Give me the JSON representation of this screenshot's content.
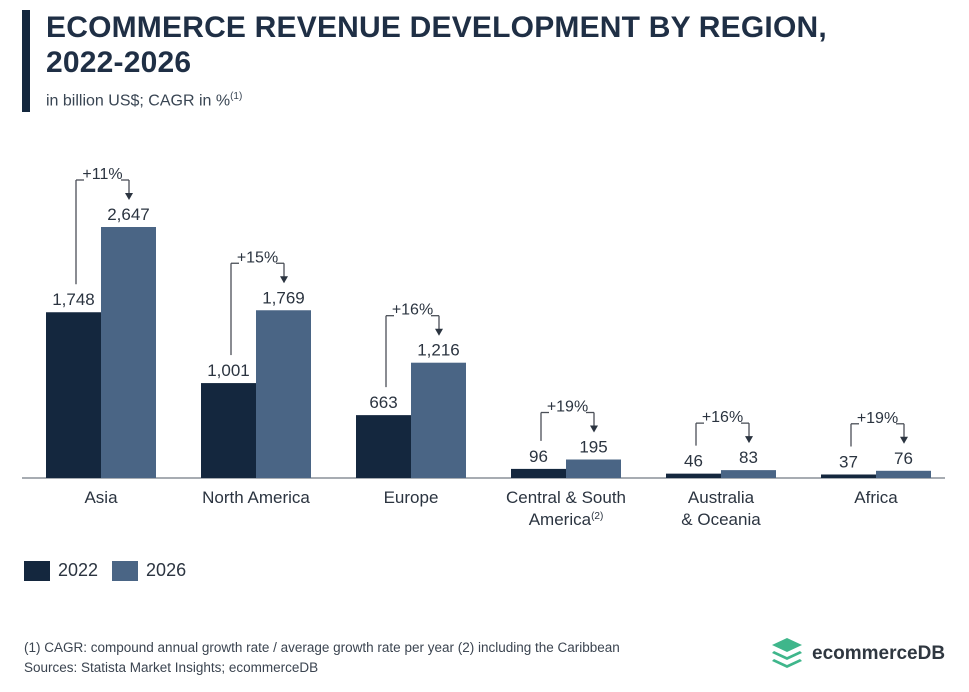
{
  "header": {
    "title_line1": "ECOMMERCE REVENUE DEVELOPMENT BY REGION,",
    "title_line2": "2022-2026",
    "subtitle": "in billion US$; CAGR in %",
    "subtitle_note": "(1)"
  },
  "chart_data": {
    "type": "bar",
    "title": "ECOMMERCE REVENUE DEVELOPMENT BY REGION, 2022-2026",
    "ylabel": "in billion US$",
    "categories": [
      [
        "Asia"
      ],
      [
        "North America"
      ],
      [
        "Europe"
      ],
      [
        "Central & South",
        "America(2)"
      ],
      [
        "Australia",
        "& Oceania"
      ],
      [
        "Africa"
      ]
    ],
    "series": [
      {
        "name": "2022",
        "color": "#14273e",
        "values": [
          1748,
          1001,
          663,
          96,
          46,
          37
        ],
        "labels": [
          "1,748",
          "1,001",
          "663",
          "96",
          "46",
          "37"
        ]
      },
      {
        "name": "2026",
        "color": "#4a6585",
        "values": [
          2647,
          1769,
          1216,
          195,
          83,
          76
        ],
        "labels": [
          "2,647",
          "1,769",
          "1,216",
          "195",
          "83",
          "76"
        ]
      }
    ],
    "cagr_labels": [
      "+11%",
      "+15%",
      "+16%",
      "+19%",
      "+16%",
      "+19%"
    ],
    "ylim": [
      0,
      2647
    ],
    "grid": false,
    "legend": "bottom-left"
  },
  "legend": {
    "items": [
      {
        "label": "2022",
        "color": "#14273e"
      },
      {
        "label": "2026",
        "color": "#4a6585"
      }
    ]
  },
  "footer": {
    "note": "(1)  CAGR: compound annual growth rate / average growth rate per year (2) including the Caribbean",
    "sources": "Sources: Statista Market Insights; ecommerceDB",
    "brand": "ecommerceDB",
    "brand_color": "#3fb68b"
  }
}
